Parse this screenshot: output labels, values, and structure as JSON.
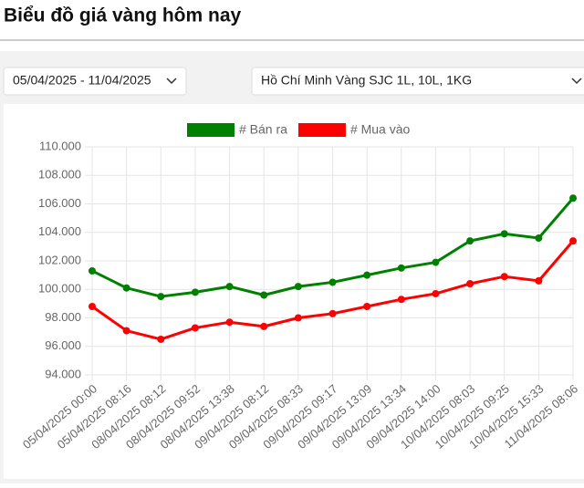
{
  "header": {
    "title": "Biểu đồ giá vàng hôm nay"
  },
  "filters": {
    "date_range": "05/04/2025 - 11/04/2025",
    "product": "Hồ Chí Minh Vàng SJC 1L, 10L, 1KG"
  },
  "chart_data": {
    "type": "line",
    "categories": [
      "05/04/2025 00:00",
      "05/04/2025 08:16",
      "08/04/2025 08:12",
      "08/04/2025 09:52",
      "08/04/2025 13:38",
      "09/04/2025 08:12",
      "09/04/2025 08:33",
      "09/04/2025 09:17",
      "09/04/2025 13:09",
      "09/04/2025 13:34",
      "09/04/2025 14:00",
      "10/04/2025 08:03",
      "10/04/2025 09:25",
      "10/04/2025 15:33",
      "11/04/2025 08:06"
    ],
    "series": [
      {
        "name": "# Bán ra",
        "color": "#008000",
        "values": [
          101300,
          100100,
          99500,
          99800,
          100200,
          99600,
          100200,
          100500,
          101000,
          101500,
          101900,
          103400,
          103900,
          103600,
          106400
        ]
      },
      {
        "name": "# Mua vào",
        "color": "#ff0000",
        "values": [
          98800,
          97100,
          96500,
          97300,
          97700,
          97400,
          98000,
          98300,
          98800,
          99300,
          99700,
          100400,
          100900,
          100600,
          103400
        ]
      }
    ],
    "ylim": [
      94000,
      110000
    ],
    "yticks": [
      {
        "value": 94000,
        "label": "94.000"
      },
      {
        "value": 96000,
        "label": "96.000"
      },
      {
        "value": 98000,
        "label": "98.000"
      },
      {
        "value": 100000,
        "label": "100.000"
      },
      {
        "value": 102000,
        "label": "102.000"
      },
      {
        "value": 104000,
        "label": "104.000"
      },
      {
        "value": 106000,
        "label": "106.000"
      },
      {
        "value": 108000,
        "label": "108.000"
      },
      {
        "value": 110000,
        "label": "110.000"
      }
    ],
    "grid": true,
    "legend": "top"
  }
}
